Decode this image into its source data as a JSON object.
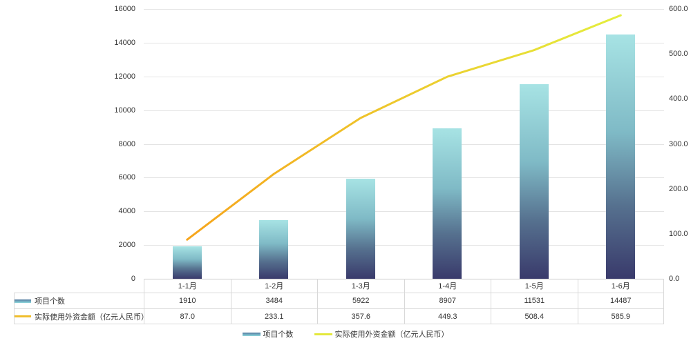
{
  "colors": {
    "bar_gradient": [
      "#A7E3E4",
      "#7FBAC6",
      "#56718F",
      "#393A6B"
    ],
    "line_gradient_start": "#F6A51C",
    "line_gradient_end": "#E4EE3E",
    "grid": "#E4E4E4",
    "axis_line": "#CCCCCC",
    "table_border": "#D8D8D8",
    "text": "#333333",
    "table_bar_marker": [
      "#53789E",
      "#8ED8DC"
    ],
    "table_line_marker": "#F0BE2C",
    "legend_line_marker": "#E4E83C"
  },
  "chart_data": {
    "type": "bar",
    "subtype": "bar-line-combo",
    "title": "",
    "categories": [
      "1-1月",
      "1-2月",
      "1-3月",
      "1-4月",
      "1-5月",
      "1-6月"
    ],
    "series": [
      {
        "name": "项目个数",
        "type": "bar",
        "y_axis": "left",
        "values": [
          1910,
          3484,
          5922,
          8907,
          11531,
          14487
        ]
      },
      {
        "name": "实际使用外资金额（亿元人民币）",
        "type": "line",
        "y_axis": "right",
        "values": [
          87.0,
          233.1,
          357.6,
          449.3,
          508.4,
          585.9
        ]
      }
    ],
    "left_axis": {
      "min": 0,
      "max": 16000,
      "step": 2000,
      "tick_labels": [
        "16000",
        "14000",
        "12000",
        "10000",
        "8000",
        "6000",
        "4000",
        "2000",
        "0"
      ]
    },
    "right_axis": {
      "min": 0,
      "max": 600,
      "step": 100,
      "tick_labels": [
        "600.0",
        "500.0",
        "400.0",
        "300.0",
        "200.0",
        "100.0",
        "0.0"
      ]
    },
    "grid": true,
    "legend_position": "bottom"
  },
  "table": {
    "column_headers": [
      "1-1月",
      "1-2月",
      "1-3月",
      "1-4月",
      "1-5月",
      "1-6月"
    ],
    "rows": [
      {
        "label": "项目个数",
        "values": [
          "1910",
          "3484",
          "5922",
          "8907",
          "11531",
          "14487"
        ]
      },
      {
        "label": "实际使用外资金额（亿元人民币）",
        "values": [
          "87.0",
          "233.1",
          "357.6",
          "449.3",
          "508.4",
          "585.9"
        ]
      }
    ]
  },
  "legend": {
    "items": [
      {
        "label": "项目个数",
        "marker": "bar-gradient-line"
      },
      {
        "label": "实际使用外资金额（亿元人民币）",
        "marker": "yellow-line"
      }
    ]
  }
}
